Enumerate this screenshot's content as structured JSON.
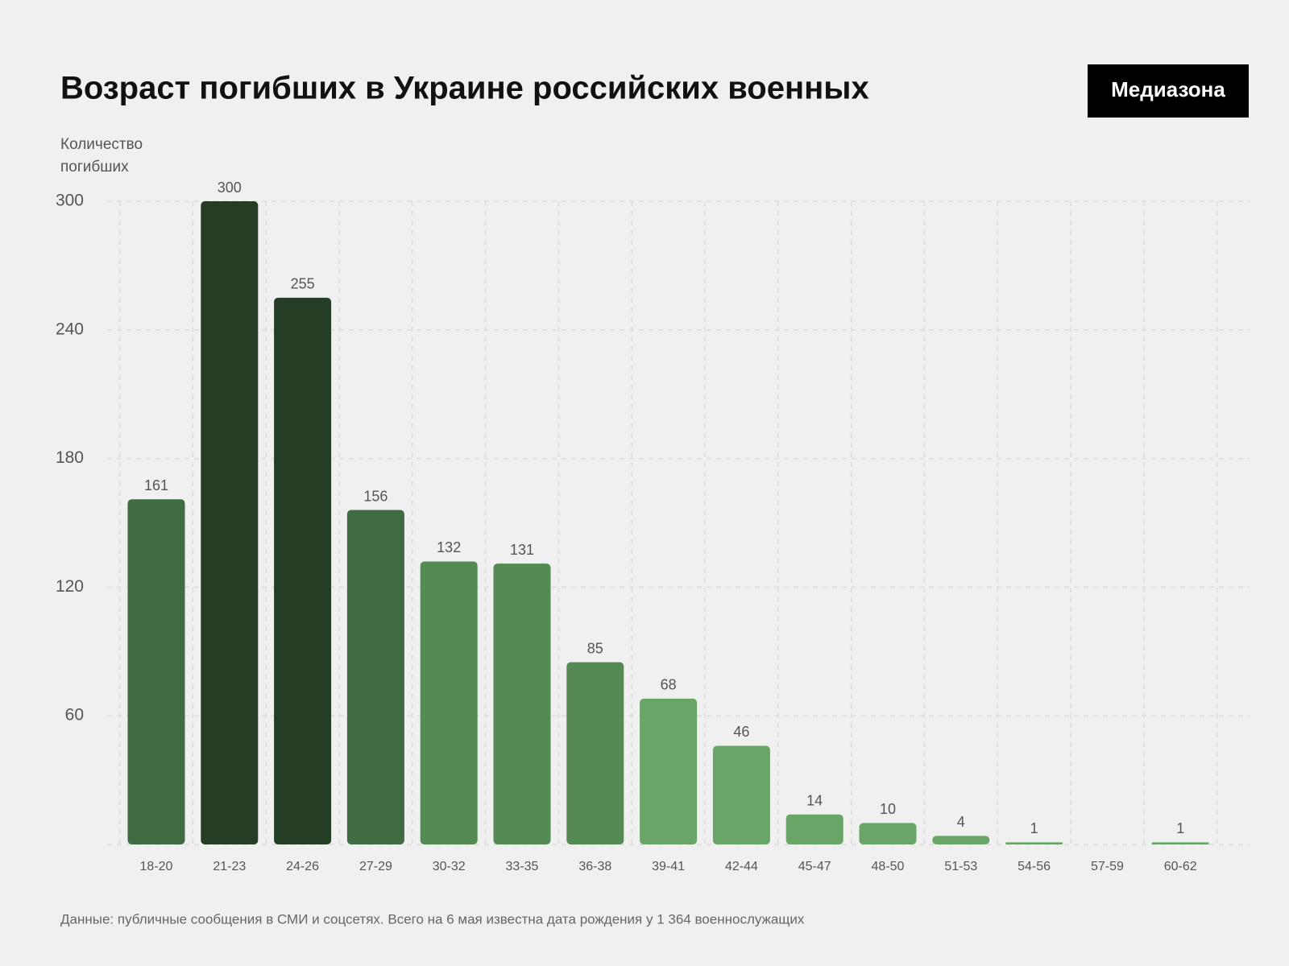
{
  "chart_data": {
    "type": "bar",
    "title": "Возраст погибших в Украине российских военных",
    "logo": "Медиазона",
    "y_label": [
      "Количество",
      "погибших"
    ],
    "categories": [
      "18-20",
      "21-23",
      "24-26",
      "27-29",
      "30-32",
      "33-35",
      "36-38",
      "39-41",
      "42-44",
      "45-47",
      "48-50",
      "51-53",
      "54-56",
      "57-59",
      "60-62"
    ],
    "values": [
      161,
      300,
      255,
      156,
      132,
      131,
      85,
      68,
      46,
      14,
      10,
      4,
      1,
      null,
      1
    ],
    "colors": [
      "#416b43",
      "#243d24",
      "#243d24",
      "#416b43",
      "#548a53",
      "#548a53",
      "#548a53",
      "#68a567",
      "#68a567",
      "#68a567",
      "#68a567",
      "#68a567",
      "#68a567",
      "#68a567",
      "#68a567"
    ],
    "ylim": [
      0,
      300
    ],
    "yticks": [
      60,
      120,
      180,
      240,
      300
    ],
    "grid": true,
    "source": "Данные: публичные сообщения в СМИ и соцсетях. Всего на 6 мая известна дата рождения у 1 364 военнослужащих"
  }
}
